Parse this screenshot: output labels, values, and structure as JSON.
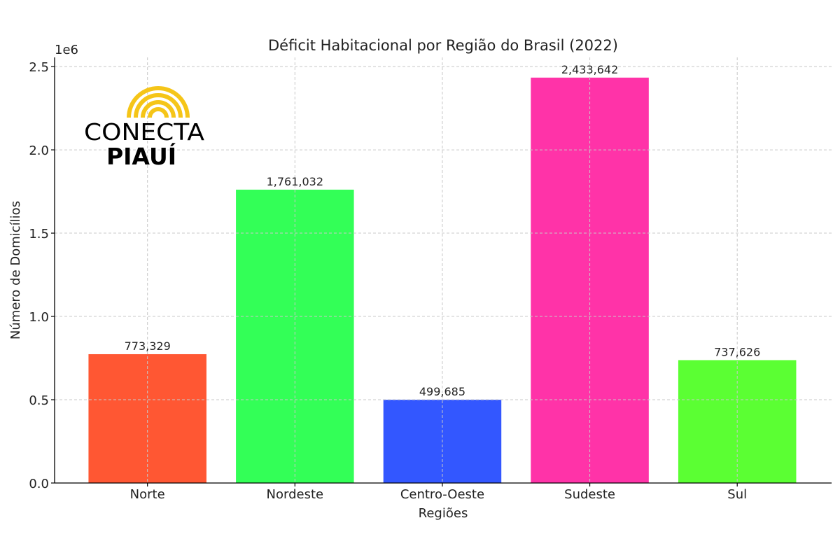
{
  "chart_data": {
    "type": "bar",
    "title": "Déficit Habitacional por Região do Brasil (2022)",
    "xlabel": "Regiões",
    "ylabel": "Número de Domicílios",
    "y_offset_label": "1e6",
    "categories": [
      "Norte",
      "Nordeste",
      "Centro-Oeste",
      "Sudeste",
      "Sul"
    ],
    "values": [
      773329,
      1761032,
      499685,
      2433642,
      737626
    ],
    "data_labels": [
      "773,329",
      "1,761,032",
      "499,685",
      "2,433,642",
      "737,626"
    ],
    "colors": [
      "#FF5733",
      "#33FF57",
      "#3357FF",
      "#FF33A8",
      "#5BFF33"
    ],
    "ylim": [
      0,
      2555000
    ],
    "yticks": [
      0,
      500000,
      1000000,
      1500000,
      2000000,
      2500000
    ],
    "ytick_labels": [
      "0.0",
      "0.5",
      "1.0",
      "1.5",
      "2.0",
      "2.5"
    ],
    "grid": true
  },
  "logo": {
    "line1": "CONECTA",
    "line2": "PIAUÍ",
    "accent": "#F5C518"
  }
}
